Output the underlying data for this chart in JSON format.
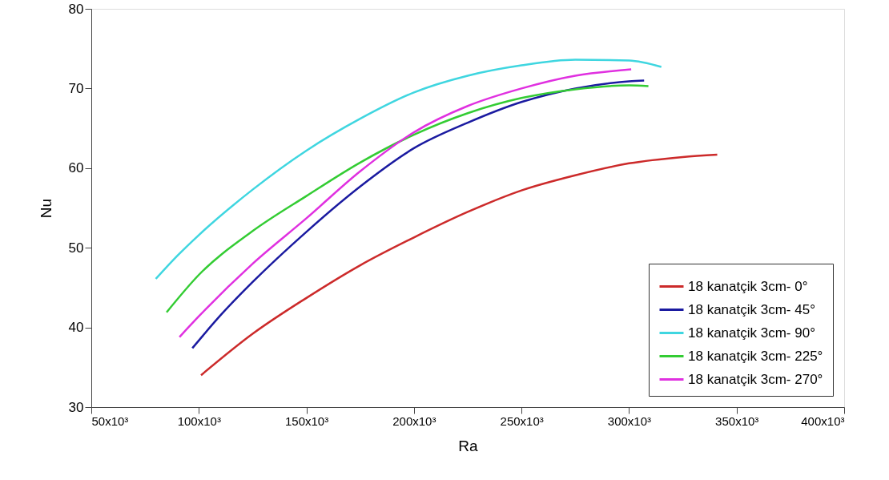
{
  "chart_data": {
    "type": "line",
    "xlabel": "Ra",
    "ylabel": "Nu",
    "xlim": [
      50000,
      400000
    ],
    "ylim": [
      30,
      80
    ],
    "xticks": [
      {
        "value": 50000,
        "label": "50x10³"
      },
      {
        "value": 100000,
        "label": "100x10³"
      },
      {
        "value": 150000,
        "label": "150x10³"
      },
      {
        "value": 200000,
        "label": "200x10³"
      },
      {
        "value": 250000,
        "label": "250x10³"
      },
      {
        "value": 300000,
        "label": "300x10³"
      },
      {
        "value": 350000,
        "label": "350x10³"
      },
      {
        "value": 400000,
        "label": "400x10³"
      }
    ],
    "yticks": [
      30,
      40,
      50,
      60,
      70,
      80
    ],
    "grid": false,
    "legend": "bottom right",
    "marker": "none",
    "line_style": "solid",
    "series": [
      {
        "name": "18 kanatçik 3cm- 0°",
        "color": "#cc2a2a",
        "x": [
          101000,
          125000,
          150000,
          175000,
          200000,
          225000,
          250000,
          275000,
          300000,
          325000,
          341000
        ],
        "values": [
          34,
          39.2,
          43.7,
          47.8,
          51.3,
          54.5,
          57.2,
          59.1,
          60.6,
          61.4,
          61.7
        ]
      },
      {
        "name": "18 kanatçik 3cm- 45°",
        "color": "#1a1aa0",
        "x": [
          97000,
          110000,
          125000,
          150000,
          175000,
          200000,
          225000,
          250000,
          275000,
          300000,
          307000
        ],
        "values": [
          37.4,
          41.5,
          45.7,
          52,
          57.7,
          62.5,
          65.7,
          68.3,
          70,
          70.9,
          71
        ]
      },
      {
        "name": "18 kanatçik 3cm- 90°",
        "color": "#3fd6e0",
        "x": [
          80000,
          90000,
          100000,
          125000,
          150000,
          175000,
          200000,
          225000,
          250000,
          275000,
          300000,
          315000
        ],
        "values": [
          46.1,
          49,
          51.6,
          57.3,
          62.2,
          66.2,
          69.5,
          71.6,
          72.9,
          73.6,
          73.5,
          72.7
        ]
      },
      {
        "name": "18 kanatçik 3cm- 225°",
        "color": "#33cc33",
        "x": [
          85000,
          100000,
          125000,
          150000,
          175000,
          200000,
          225000,
          250000,
          275000,
          300000,
          309000
        ],
        "values": [
          41.9,
          46.6,
          52.1,
          56.5,
          60.7,
          64.2,
          66.9,
          68.8,
          69.9,
          70.4,
          70.3
        ]
      },
      {
        "name": "18 kanatçik 3cm- 270°",
        "color": "#e030e0",
        "x": [
          91000,
          100000,
          125000,
          150000,
          175000,
          200000,
          225000,
          250000,
          275000,
          301000
        ],
        "values": [
          38.8,
          41.4,
          48,
          53.7,
          59.6,
          64.5,
          67.8,
          70,
          71.6,
          72.4
        ]
      }
    ]
  }
}
